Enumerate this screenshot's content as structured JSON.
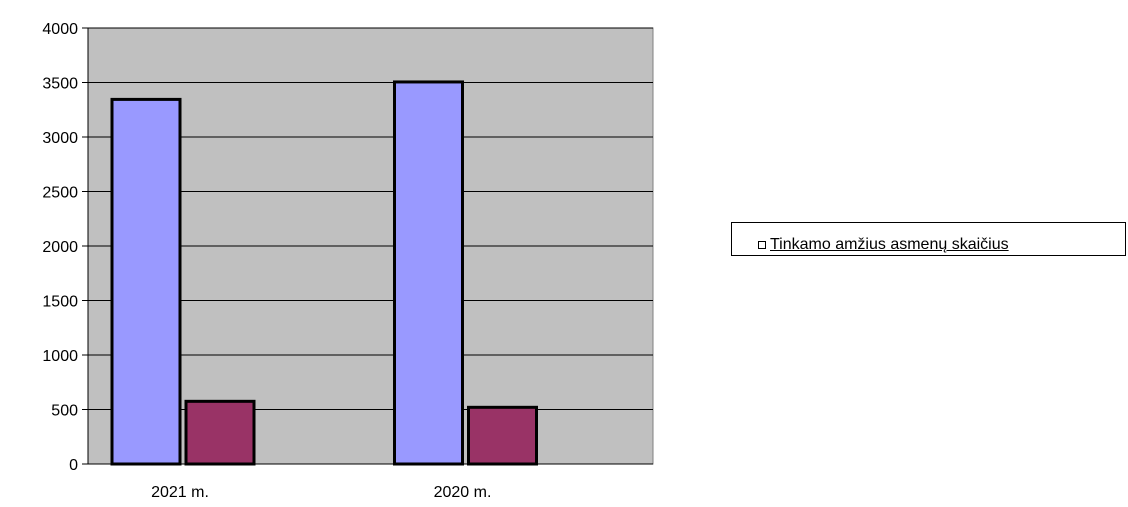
{
  "chart_data": {
    "type": "bar",
    "categories": [
      "2021 m.",
      "2020 m."
    ],
    "series": [
      {
        "values": [
          3345,
          3505
        ],
        "color": "#9999ff"
      },
      {
        "values": [
          575,
          520
        ],
        "color": "#993366"
      }
    ],
    "ylim": [
      0,
      4000
    ],
    "yticks": [
      "0",
      "500",
      "1000",
      "1500",
      "2000",
      "2500",
      "3000",
      "3500",
      "4000"
    ],
    "grid": true,
    "plot_background": "#c0c0c0",
    "legend_position": "right",
    "legend": [
      "Tinkamo amžius asmenų skaičius"
    ]
  }
}
